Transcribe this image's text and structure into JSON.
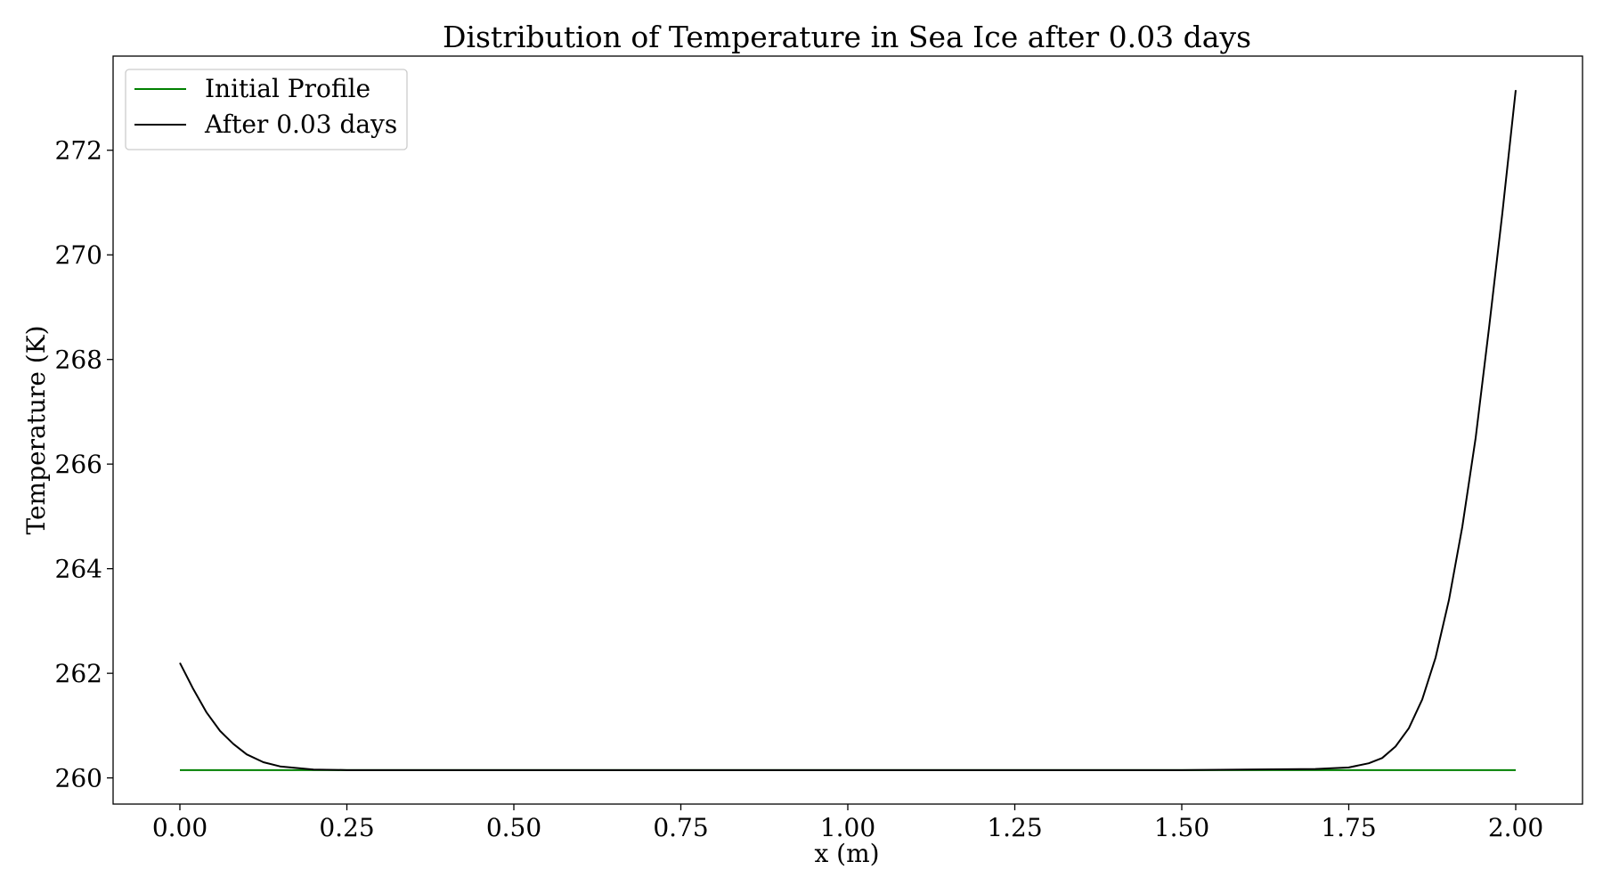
{
  "chart_data": {
    "type": "line",
    "title": "Distribution of Temperature in Sea Ice after 0.03 days",
    "xlabel": "x (m)",
    "ylabel": "Temperature (K)",
    "xlim": [
      -0.1,
      2.1
    ],
    "ylim": [
      259.5,
      273.8
    ],
    "x_ticks": [
      0.0,
      0.25,
      0.5,
      0.75,
      1.0,
      1.25,
      1.5,
      1.75,
      2.0
    ],
    "x_tick_labels": [
      "0.00",
      "0.25",
      "0.50",
      "0.75",
      "1.00",
      "1.25",
      "1.50",
      "1.75",
      "2.00"
    ],
    "y_ticks": [
      260,
      262,
      264,
      266,
      268,
      270,
      272
    ],
    "y_tick_labels": [
      "260",
      "262",
      "264",
      "266",
      "268",
      "270",
      "272"
    ],
    "grid": false,
    "legend_position": "top-left",
    "series": [
      {
        "name": "Initial Profile",
        "color": "#008000",
        "x": [
          0.0,
          2.0
        ],
        "y": [
          260.15,
          260.15
        ]
      },
      {
        "name": "After 0.03 days",
        "color": "#000000",
        "x": [
          0.0,
          0.02,
          0.04,
          0.06,
          0.08,
          0.1,
          0.125,
          0.15,
          0.2,
          0.25,
          0.5,
          1.0,
          1.5,
          1.7,
          1.75,
          1.78,
          1.8,
          1.82,
          1.84,
          1.86,
          1.88,
          1.9,
          1.92,
          1.94,
          1.96,
          1.98,
          2.0
        ],
        "y": [
          262.2,
          261.7,
          261.25,
          260.9,
          260.65,
          260.45,
          260.3,
          260.22,
          260.16,
          260.15,
          260.15,
          260.15,
          260.15,
          260.17,
          260.2,
          260.28,
          260.38,
          260.6,
          260.95,
          261.5,
          262.3,
          263.4,
          264.8,
          266.5,
          268.6,
          270.8,
          273.15
        ]
      }
    ]
  }
}
